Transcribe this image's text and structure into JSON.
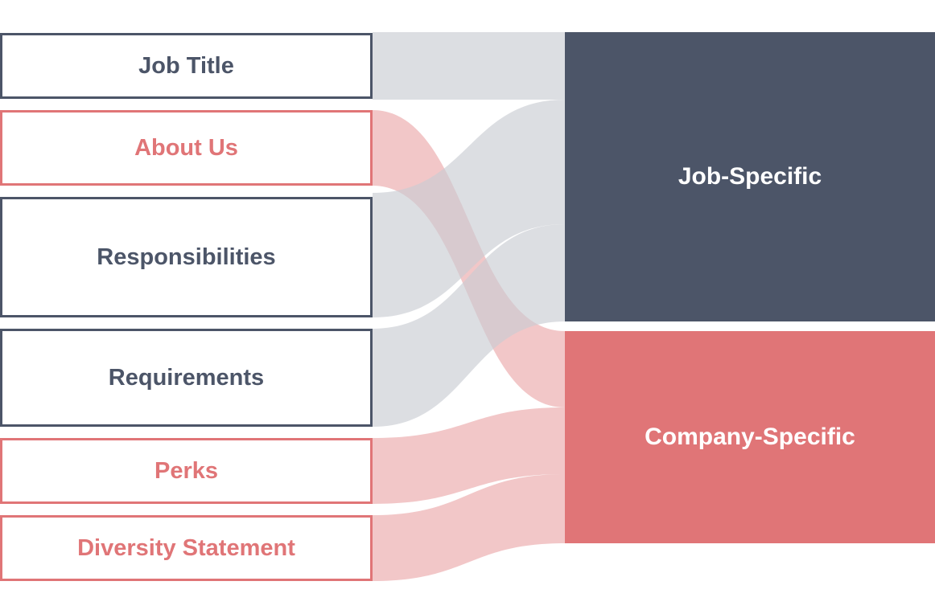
{
  "colors": {
    "job": "#4c5568",
    "company": "#e07577",
    "job_link": "#c9ccd2",
    "company_link": "#eba9ab"
  },
  "sources": [
    {
      "label": "Job Title",
      "group": "job"
    },
    {
      "label": "About Us",
      "group": "company"
    },
    {
      "label": "Responsibilities",
      "group": "job"
    },
    {
      "label": "Requirements",
      "group": "job"
    },
    {
      "label": "Perks",
      "group": "company"
    },
    {
      "label": "Diversity Statement",
      "group": "company"
    }
  ],
  "targets": [
    {
      "label": "Job-Specific",
      "group": "job"
    },
    {
      "label": "Company-Specific",
      "group": "company"
    }
  ],
  "links": [
    {
      "source": "Job Title",
      "target": "Job-Specific"
    },
    {
      "source": "About Us",
      "target": "Company-Specific"
    },
    {
      "source": "Responsibilities",
      "target": "Job-Specific"
    },
    {
      "source": "Requirements",
      "target": "Job-Specific"
    },
    {
      "source": "Perks",
      "target": "Company-Specific"
    },
    {
      "source": "Diversity Statement",
      "target": "Company-Specific"
    }
  ]
}
